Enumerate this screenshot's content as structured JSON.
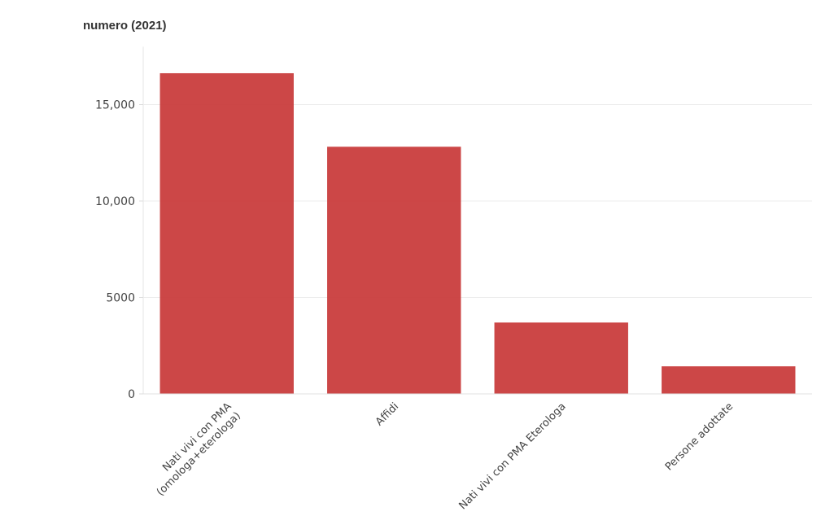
{
  "chart_data": {
    "type": "bar",
    "title": "numero (2021)",
    "xlabel": "",
    "ylabel": "",
    "categories": [
      [
        "Nati vivi con PMA",
        "(omologa+eterologa)"
      ],
      [
        "Affidi"
      ],
      [
        "Nati vivi con PMA Eterologa"
      ],
      [
        "Persone adottate"
      ]
    ],
    "values": [
      16625,
      12814,
      3700,
      1430
    ],
    "ylim": [
      0,
      18000
    ],
    "yticks": [
      0,
      5000,
      10000,
      15000
    ],
    "ytick_labels": [
      "0",
      "5000",
      "10,000",
      "15,000"
    ],
    "grid": true,
    "bar_color": "#c83737"
  }
}
